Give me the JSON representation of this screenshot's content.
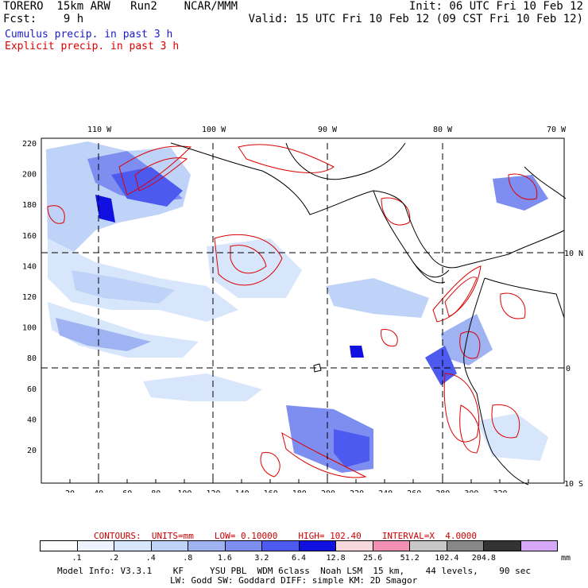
{
  "header": {
    "title": "TORERO  15km ARW   Run2    NCAR/MMM",
    "forecast": "Fcst:    9 h",
    "init": "Init: 06 UTC Fri 10 Feb 12",
    "valid": "Valid: 15 UTC Fri 10 Feb 12 (09 CST Fri 10 Feb 12)",
    "field_cumulus": "Cumulus precip. in past 3 h",
    "field_explicit": "Explicit precip. in past 3 h"
  },
  "map": {
    "lon_labels": [
      "110 W",
      "100 W",
      "90 W",
      "80 W",
      "70 W"
    ],
    "lat_labels": [
      "10 N",
      "0",
      "10 S"
    ],
    "x_ticks": [
      "20",
      "40",
      "60",
      "80",
      "100",
      "120",
      "140",
      "160",
      "180",
      "200",
      "220",
      "240",
      "260",
      "280",
      "300",
      "320"
    ],
    "y_ticks": [
      "220",
      "200",
      "180",
      "160",
      "140",
      "120",
      "100",
      "80",
      "60",
      "40",
      "20"
    ]
  },
  "contours": {
    "label": "CONTOURS:  UNITS=mm",
    "low": "LOW= 0.10000",
    "high": "HIGH= 102.40",
    "interval": "INTERVAL=X  4.0000"
  },
  "legend": {
    "colors": [
      "#ffffff",
      "#eef4ff",
      "#d8e6fb",
      "#bfd2f7",
      "#9fb2f2",
      "#7d8ef0",
      "#4d5af0",
      "#1010e0",
      "#f7d8dc",
      "#f590b5",
      "#c8c8c8",
      "#888888",
      "#333333",
      "#d8a8f8"
    ],
    "ticks": [
      ".1",
      ".2",
      ".4",
      ".8",
      "1.6",
      "3.2",
      "6.4",
      "12.8",
      "25.6",
      "51.2",
      "102.4",
      "204.8"
    ],
    "units": "mm"
  },
  "model": {
    "line1": "Model Info: V3.3.1    KF     YSU PBL  WDM 6class  Noah LSM  15 km,    44 levels,    90 sec",
    "line2": "LW: Godd SW: Goddard DIFF: simple KM: 2D Smagor"
  }
}
